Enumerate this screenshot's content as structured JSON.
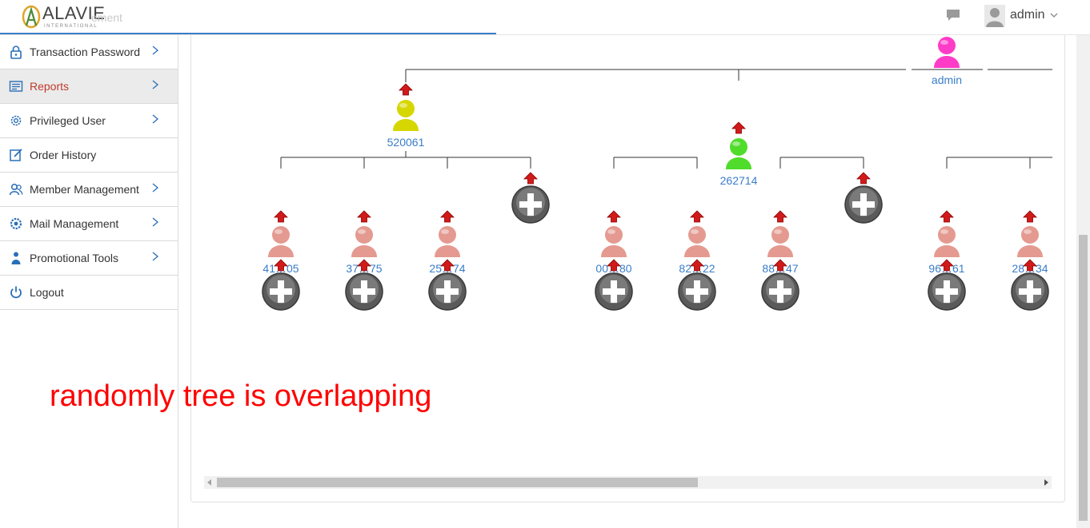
{
  "header": {
    "brand": "ALAVIE",
    "brand_sub": "INTERNATIONAL",
    "ghost_text": "ement",
    "user": "admin",
    "icons": [
      "chat-icon",
      "avatar-icon",
      "chevron-down-icon"
    ]
  },
  "sidebar": {
    "items": [
      {
        "label": "Transaction Password",
        "icon": "lock-icon",
        "chevron": true,
        "active": false
      },
      {
        "label": "Reports",
        "icon": "report-icon",
        "chevron": true,
        "active": true
      },
      {
        "label": "Privileged User",
        "icon": "gear-icon",
        "chevron": true,
        "active": false
      },
      {
        "label": "Order History",
        "icon": "edit-icon",
        "chevron": false,
        "active": false
      },
      {
        "label": "Member Management",
        "icon": "users-icon",
        "chevron": true,
        "active": false
      },
      {
        "label": "Mail Management",
        "icon": "cog-icon",
        "chevron": true,
        "active": false
      },
      {
        "label": "Promotional Tools",
        "icon": "person-icon",
        "chevron": true,
        "active": false
      },
      {
        "label": "Logout",
        "icon": "power-icon",
        "chevron": false,
        "active": false
      }
    ],
    "accent": "#2a6fb7",
    "active_color": "#c0392b"
  },
  "tree": {
    "root": {
      "id": "admin",
      "color": "#ff3cc8"
    },
    "level1": [
      {
        "id": "520061",
        "color": "#d6d600"
      },
      {
        "id": "262714",
        "color": "#4fdc2a"
      }
    ],
    "level2_labels": [
      "41…05",
      "37…75",
      "25…74",
      "00…80",
      "82…22",
      "88…47",
      "96…61",
      "28…34"
    ],
    "label_color": "#3a7dc9"
  },
  "annotation": "randomly tree is overlapping"
}
